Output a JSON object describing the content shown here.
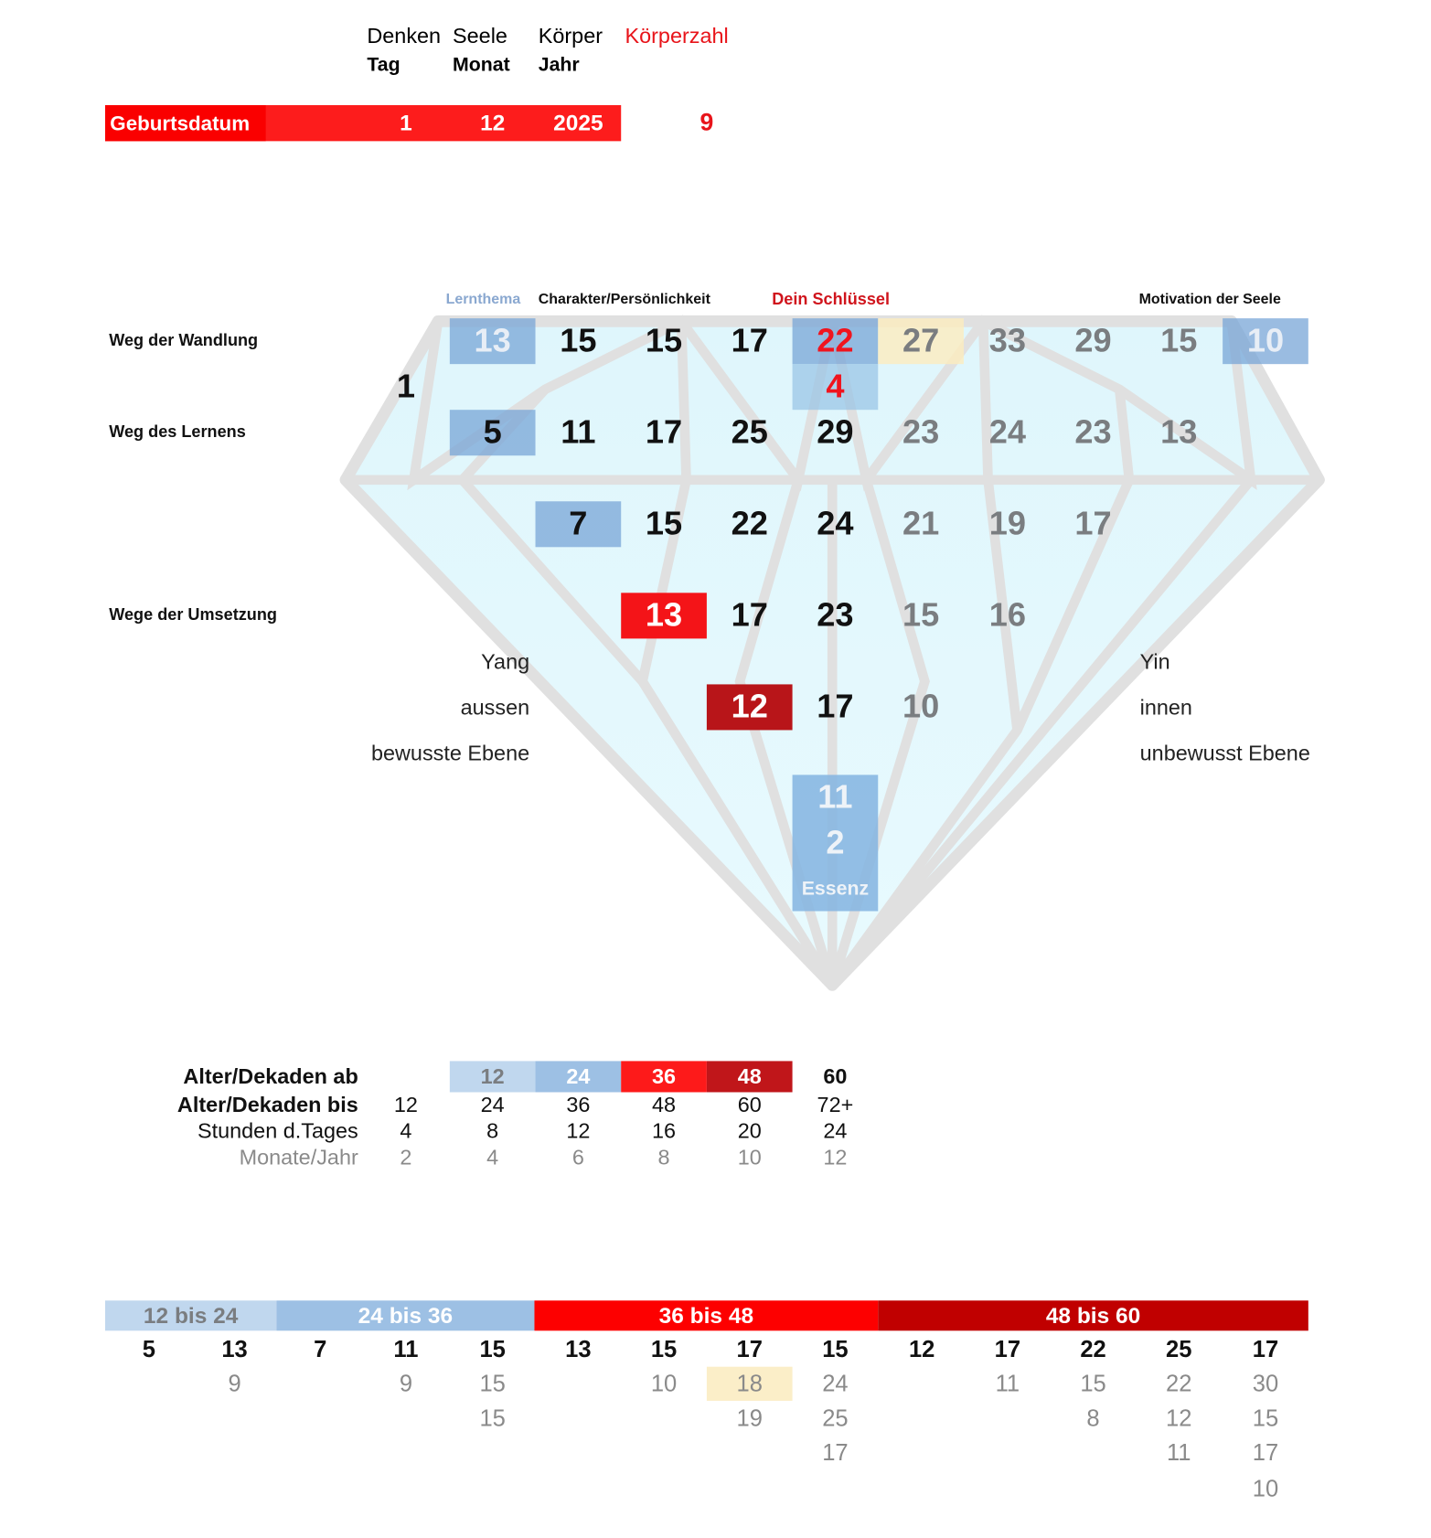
{
  "header": {
    "cols": [
      {
        "aspect": "Denken",
        "unit": "Tag"
      },
      {
        "aspect": "Seele",
        "unit": "Monat"
      },
      {
        "aspect": "Körper",
        "unit": "Jahr"
      }
    ],
    "body_number_label": "Körperzahl",
    "birthdate_label": "Geburtsdatum",
    "day": "1",
    "month": "12",
    "year": "2025",
    "body_number": "9"
  },
  "colors": {
    "red": "#fa0000",
    "dark_red": "#b81519",
    "blue": "#8fb4dc",
    "light_blue": "#c0d7ee",
    "yellow": "#fbeec8"
  },
  "diamond": {
    "column_labels": {
      "learning_theme": "Lernthema",
      "character": "Charakter/Persönlichkeit",
      "key": "Dein Schlüssel",
      "soul_motivation": "Motivation der Seele"
    },
    "row_labels": {
      "transformation": "Weg der Wandlung",
      "learning": "Weg des Lernens",
      "implementation": "Wege der Umsetzung"
    },
    "rows": [
      [
        null,
        {
          "v": "13",
          "k": "blue"
        },
        {
          "v": "15",
          "k": "black"
        },
        {
          "v": "15",
          "k": "black"
        },
        {
          "v": "17",
          "k": "black"
        },
        {
          "v": "22",
          "k": "key"
        },
        {
          "v": "27",
          "k": "yellow"
        },
        {
          "v": "33",
          "k": "gray"
        },
        {
          "v": "29",
          "k": "gray"
        },
        {
          "v": "15",
          "k": "gray"
        },
        {
          "v": "10",
          "k": "blue"
        }
      ],
      [
        {
          "v": "1",
          "k": "black"
        },
        null,
        null,
        null,
        null,
        {
          "v": "4",
          "k": "keylight"
        },
        null,
        null,
        null,
        null,
        null
      ],
      [
        null,
        {
          "v": "5",
          "k": "blue-dark"
        },
        {
          "v": "11",
          "k": "black"
        },
        {
          "v": "17",
          "k": "black"
        },
        {
          "v": "25",
          "k": "black"
        },
        {
          "v": "29",
          "k": "black"
        },
        {
          "v": "23",
          "k": "gray"
        },
        {
          "v": "24",
          "k": "gray"
        },
        {
          "v": "23",
          "k": "gray"
        },
        {
          "v": "13",
          "k": "gray"
        },
        null
      ],
      [
        null,
        null,
        {
          "v": "7",
          "k": "blue-dark"
        },
        {
          "v": "15",
          "k": "black"
        },
        {
          "v": "22",
          "k": "black"
        },
        {
          "v": "24",
          "k": "black"
        },
        {
          "v": "21",
          "k": "gray"
        },
        {
          "v": "19",
          "k": "gray"
        },
        {
          "v": "17",
          "k": "gray"
        },
        null,
        null
      ],
      [
        null,
        null,
        null,
        {
          "v": "13",
          "k": "red"
        },
        {
          "v": "17",
          "k": "black"
        },
        {
          "v": "23",
          "k": "black"
        },
        {
          "v": "15",
          "k": "gray"
        },
        {
          "v": "16",
          "k": "gray"
        },
        null,
        null,
        null
      ],
      [
        null,
        null,
        null,
        null,
        {
          "v": "12",
          "k": "darkred"
        },
        {
          "v": "17",
          "k": "black"
        },
        {
          "v": "10",
          "k": "gray"
        },
        null,
        null,
        null,
        null
      ]
    ],
    "essence": {
      "value1": "11",
      "value2": "2",
      "label": "Essenz"
    },
    "left_side": [
      "Yang",
      "aussen",
      "bewusste Ebene"
    ],
    "right_side": [
      "Yin",
      "innen",
      "unbewusst Ebene"
    ]
  },
  "ages": {
    "rows": [
      {
        "label": "Alter/Dekaden ab",
        "values": [
          "",
          "12",
          "24",
          "36",
          "48",
          "60"
        ]
      },
      {
        "label": "Alter/Dekaden bis",
        "values": [
          "12",
          "24",
          "36",
          "48",
          "60",
          "72+"
        ]
      },
      {
        "label": "Stunden d.Tages",
        "values": [
          "4",
          "8",
          "12",
          "16",
          "20",
          "24"
        ]
      },
      {
        "label": "Monate/Jahr",
        "values": [
          "2",
          "4",
          "6",
          "8",
          "10",
          "12"
        ]
      }
    ]
  },
  "decades": {
    "bands": [
      "12 bis 24",
      "24 bis 36",
      "36 bis 48",
      "48 bis 60"
    ],
    "columns": [
      [
        "5"
      ],
      [
        "13",
        "9"
      ],
      [
        "7"
      ],
      [
        "11",
        "9"
      ],
      [
        "15",
        "15",
        "15"
      ],
      [
        "13"
      ],
      [
        "15",
        "10"
      ],
      [
        "17",
        "18",
        "19"
      ],
      [
        "15",
        "24",
        "25",
        "17"
      ],
      [
        "12"
      ],
      [
        "17",
        "11"
      ],
      [
        "22",
        "15",
        "8"
      ],
      [
        "25",
        "22",
        "12",
        "11"
      ],
      [
        "17",
        "30",
        "15",
        "17",
        "10"
      ]
    ],
    "highlighted": {
      "column": 7,
      "row": 1
    }
  }
}
